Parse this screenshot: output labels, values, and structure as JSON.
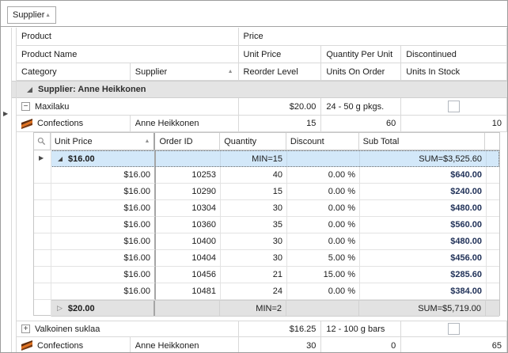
{
  "group_panel": {
    "field_button": "Supplier"
  },
  "headers": {
    "band_product": "Product",
    "band_price": "Price",
    "product_name": "Product Name",
    "unit_price": "Unit Price",
    "quantity_per_unit": "Quantity Per Unit",
    "discontinued": "Discontinued",
    "category": "Category",
    "supplier": "Supplier",
    "reorder_level": "Reorder Level",
    "units_on_order": "Units On Order",
    "units_in_stock": "Units In Stock"
  },
  "group_row": {
    "label": "Supplier: Anne Heikkonen"
  },
  "record1": {
    "product_name": "Maxilaku",
    "unit_price": "$20.00",
    "quantity_per_unit": "24 - 50 g pkgs.",
    "discontinued": false,
    "category": "Confections",
    "supplier": "Anne Heikkonen",
    "reorder_level": "15",
    "units_on_order": "60",
    "units_in_stock": "10"
  },
  "record2": {
    "product_name": "Valkoinen suklaa",
    "unit_price": "$16.25",
    "quantity_per_unit": "12 - 100 g bars",
    "discontinued": false,
    "category": "Confections",
    "supplier": "Anne Heikkonen",
    "reorder_level": "30",
    "units_on_order": "0",
    "units_in_stock": "65"
  },
  "detail_grid": {
    "headers": {
      "unit_price": "Unit Price",
      "order_id": "Order ID",
      "quantity": "Quantity",
      "discount": "Discount",
      "sub_total": "Sub Total"
    },
    "group_16": {
      "label": "$16.00",
      "min": "MIN=15",
      "sum": "SUM=$3,525.60"
    },
    "rows": [
      {
        "unit_price": "$16.00",
        "order_id": "10253",
        "quantity": "40",
        "discount": "0.00 %",
        "sub_total": "$640.00"
      },
      {
        "unit_price": "$16.00",
        "order_id": "10290",
        "quantity": "15",
        "discount": "0.00 %",
        "sub_total": "$240.00"
      },
      {
        "unit_price": "$16.00",
        "order_id": "10304",
        "quantity": "30",
        "discount": "0.00 %",
        "sub_total": "$480.00"
      },
      {
        "unit_price": "$16.00",
        "order_id": "10360",
        "quantity": "35",
        "discount": "0.00 %",
        "sub_total": "$560.00"
      },
      {
        "unit_price": "$16.00",
        "order_id": "10400",
        "quantity": "30",
        "discount": "0.00 %",
        "sub_total": "$480.00"
      },
      {
        "unit_price": "$16.00",
        "order_id": "10404",
        "quantity": "30",
        "discount": "5.00 %",
        "sub_total": "$456.00"
      },
      {
        "unit_price": "$16.00",
        "order_id": "10456",
        "quantity": "21",
        "discount": "15.00 %",
        "sub_total": "$285.60"
      },
      {
        "unit_price": "$16.00",
        "order_id": "10481",
        "quantity": "24",
        "discount": "0.00 %",
        "sub_total": "$384.00"
      }
    ],
    "group_20": {
      "label": "$20.00",
      "min": "MIN=2",
      "sum": "SUM=$5,719.00"
    }
  },
  "icons": {
    "minus": "−",
    "plus": "+",
    "sort_asc": "▲",
    "row_indicator": "▶",
    "collapsed_group": "▷"
  },
  "colors": {
    "selected_row": "#d3e8f9",
    "group_row_bg": "#e4e4e4",
    "subtotal_text": "#1f3057",
    "grid_line": "#d9d9d9"
  }
}
